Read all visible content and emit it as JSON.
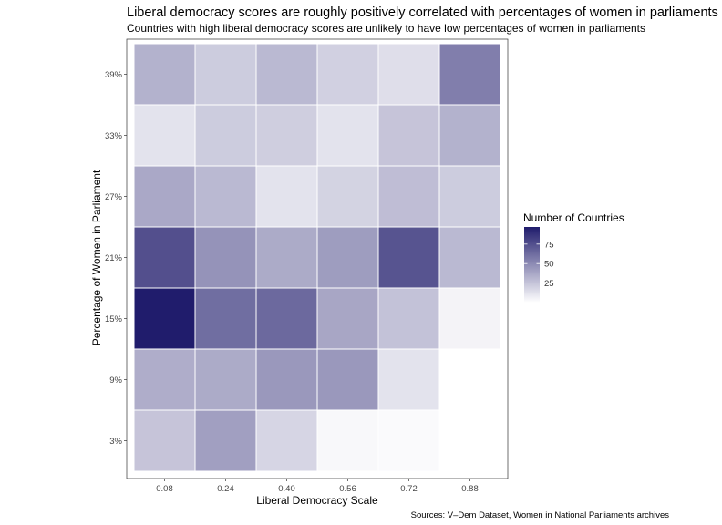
{
  "chart_data": {
    "type": "heatmap",
    "title": "Liberal democracy scores are roughly positively correlated with percentages of women in parliaments",
    "subtitle": "Countries with high liberal democracy scores are unlikely to have low percentages of women in parliaments",
    "xlabel": "Liberal Democracy Scale",
    "ylabel": "Percentage of Women in Parliament",
    "caption": "Sources: V–Dem Dataset, Women in National Parliaments archives",
    "x_categories": [
      "0.08",
      "0.24",
      "0.40",
      "0.56",
      "0.72",
      "0.88"
    ],
    "y_categories": [
      "39%",
      "33%",
      "27%",
      "21%",
      "15%",
      "9%",
      "3%"
    ],
    "values": [
      [
        33,
        22,
        30,
        20,
        14,
        55
      ],
      [
        12,
        22,
        21,
        12,
        25,
        33
      ],
      [
        37,
        30,
        12,
        19,
        28,
        22
      ],
      [
        75,
        46,
        36,
        42,
        73,
        30
      ],
      [
        97,
        62,
        64,
        38,
        26,
        5
      ],
      [
        35,
        36,
        44,
        44,
        12,
        null
      ],
      [
        25,
        41,
        18,
        3,
        2,
        null
      ]
    ],
    "legend": {
      "title": "Number of Countries",
      "ticks": [
        75,
        50,
        25
      ],
      "range": [
        0,
        97
      ],
      "position": "right"
    },
    "colors": {
      "low": "#ffffff",
      "high": "#201c6c",
      "grid": "#ffffff",
      "panel_border": "#333333"
    },
    "grid": false
  }
}
